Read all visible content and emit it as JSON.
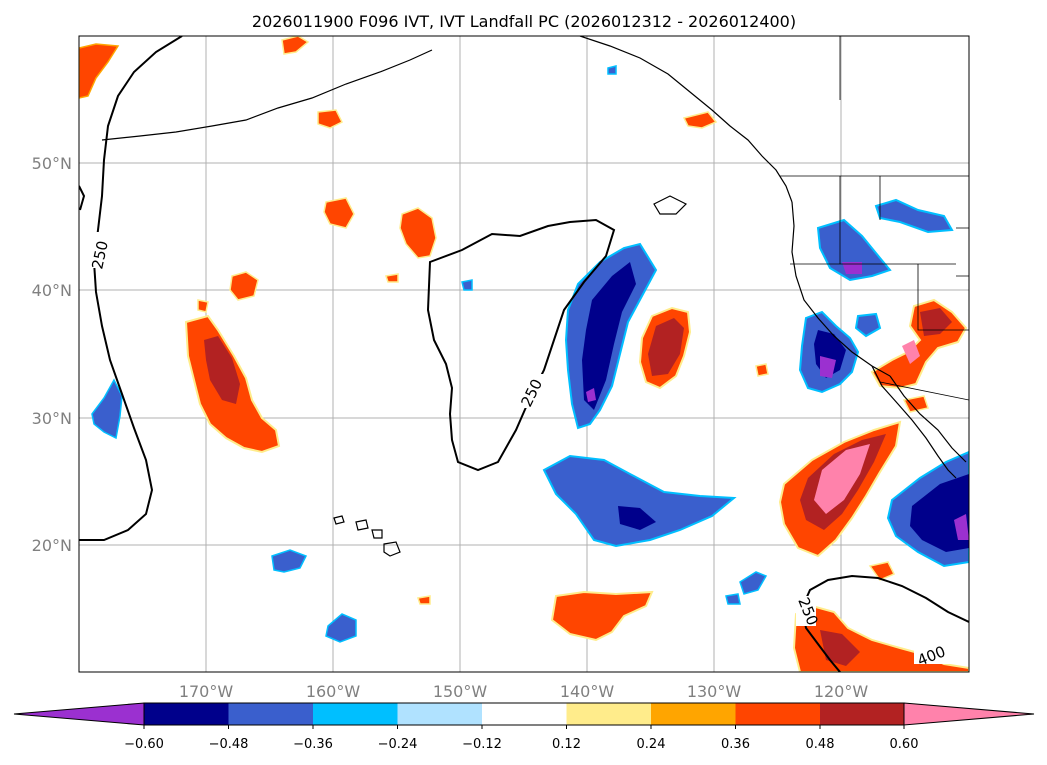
{
  "title": "2026011900 F096 IVT, IVT Landfall PC (2026012312 - 2026012400)",
  "map": {
    "lon_range": [
      -180,
      -110
    ],
    "lat_range": [
      10,
      60
    ],
    "lat_ticks": [
      {
        "value": 20,
        "label": "20°N"
      },
      {
        "value": 30,
        "label": "30°N"
      },
      {
        "value": 40,
        "label": "40°N"
      },
      {
        "value": 50,
        "label": "50°N"
      }
    ],
    "lon_ticks": [
      {
        "value": -170,
        "label": "170°W"
      },
      {
        "value": -160,
        "label": "160°W"
      },
      {
        "value": -150,
        "label": "150°W"
      },
      {
        "value": -140,
        "label": "140°W"
      },
      {
        "value": -130,
        "label": "130°W"
      },
      {
        "value": -120,
        "label": "120°W"
      }
    ],
    "contour_labels": [
      "250",
      "250",
      "250",
      "400"
    ]
  },
  "colorbar": {
    "boundaries": [
      "−0.60",
      "−0.48",
      "−0.36",
      "−0.24",
      "−0.12",
      "0.12",
      "0.24",
      "0.36",
      "0.48",
      "0.60"
    ],
    "colors": [
      "#9b30d0",
      "#00008b",
      "#3a5fcd",
      "#00bfff",
      "#b0e2ff",
      "#ffffff",
      "#ffec8b",
      "#ffa500",
      "#ff4500",
      "#b22222",
      "#ff82ab"
    ]
  },
  "legend_colors": {
    "purple": "#9b30d0",
    "navy": "#00008b",
    "blue": "#3a5fcd",
    "sky": "#00bfff",
    "light": "#b0e2ff",
    "yellow": "#ffec8b",
    "orange": "#ffa500",
    "red": "#ff4500",
    "brick": "#b22222",
    "pink": "#ff82ab"
  }
}
